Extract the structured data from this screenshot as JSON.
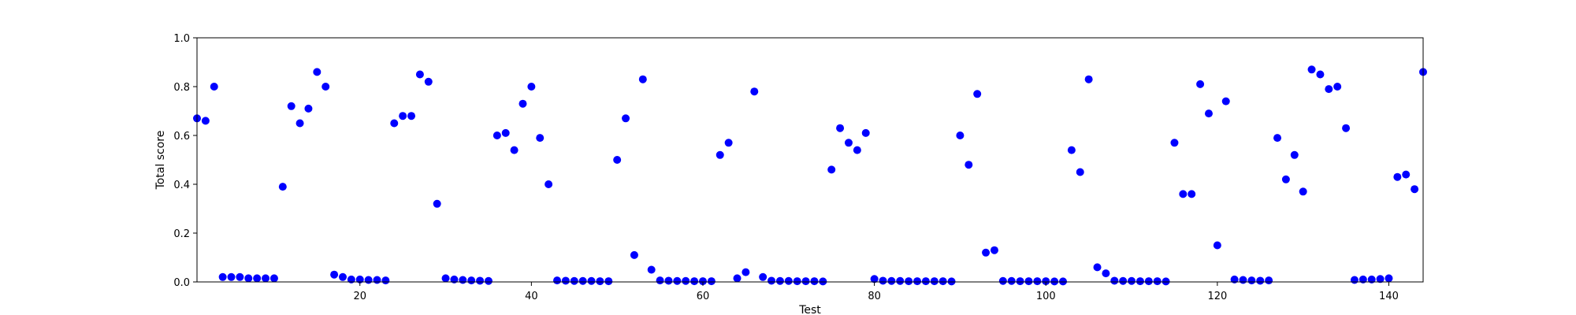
{
  "chart_data": {
    "type": "scatter",
    "title": "",
    "xlabel": "Test",
    "ylabel": "Total score",
    "xlim": [
      1,
      144
    ],
    "ylim": [
      0.0,
      1.0
    ],
    "xticks": [
      20,
      40,
      60,
      80,
      100,
      120,
      140
    ],
    "xtick_labels": [
      "20",
      "40",
      "60",
      "80",
      "100",
      "120",
      "140"
    ],
    "yticks": [
      0.0,
      0.2,
      0.4,
      0.6,
      0.8,
      1.0
    ],
    "ytick_labels": [
      "0.0",
      "0.2",
      "0.4",
      "0.6",
      "0.8",
      "1.0"
    ],
    "grid": false,
    "marker_color": "#0000ff",
    "points": [
      {
        "x": 1,
        "y": 0.67
      },
      {
        "x": 2,
        "y": 0.66
      },
      {
        "x": 3,
        "y": 0.8
      },
      {
        "x": 4,
        "y": 0.02
      },
      {
        "x": 5,
        "y": 0.02
      },
      {
        "x": 6,
        "y": 0.02
      },
      {
        "x": 7,
        "y": 0.015
      },
      {
        "x": 8,
        "y": 0.015
      },
      {
        "x": 9,
        "y": 0.015
      },
      {
        "x": 10,
        "y": 0.015
      },
      {
        "x": 11,
        "y": 0.39
      },
      {
        "x": 12,
        "y": 0.72
      },
      {
        "x": 13,
        "y": 0.65
      },
      {
        "x": 14,
        "y": 0.71
      },
      {
        "x": 15,
        "y": 0.86
      },
      {
        "x": 16,
        "y": 0.8
      },
      {
        "x": 17,
        "y": 0.03
      },
      {
        "x": 18,
        "y": 0.02
      },
      {
        "x": 19,
        "y": 0.01
      },
      {
        "x": 20,
        "y": 0.01
      },
      {
        "x": 21,
        "y": 0.008
      },
      {
        "x": 22,
        "y": 0.008
      },
      {
        "x": 23,
        "y": 0.006
      },
      {
        "x": 24,
        "y": 0.65
      },
      {
        "x": 25,
        "y": 0.68
      },
      {
        "x": 26,
        "y": 0.68
      },
      {
        "x": 27,
        "y": 0.85
      },
      {
        "x": 28,
        "y": 0.82
      },
      {
        "x": 29,
        "y": 0.32
      },
      {
        "x": 30,
        "y": 0.015
      },
      {
        "x": 31,
        "y": 0.01
      },
      {
        "x": 32,
        "y": 0.008
      },
      {
        "x": 33,
        "y": 0.006
      },
      {
        "x": 34,
        "y": 0.005
      },
      {
        "x": 35,
        "y": 0.004
      },
      {
        "x": 36,
        "y": 0.6
      },
      {
        "x": 37,
        "y": 0.61
      },
      {
        "x": 38,
        "y": 0.54
      },
      {
        "x": 39,
        "y": 0.73
      },
      {
        "x": 40,
        "y": 0.8
      },
      {
        "x": 41,
        "y": 0.59
      },
      {
        "x": 42,
        "y": 0.4
      },
      {
        "x": 43,
        "y": 0.006
      },
      {
        "x": 44,
        "y": 0.005
      },
      {
        "x": 45,
        "y": 0.004
      },
      {
        "x": 46,
        "y": 0.004
      },
      {
        "x": 47,
        "y": 0.004
      },
      {
        "x": 48,
        "y": 0.003
      },
      {
        "x": 49,
        "y": 0.003
      },
      {
        "x": 50,
        "y": 0.5
      },
      {
        "x": 51,
        "y": 0.67
      },
      {
        "x": 52,
        "y": 0.11
      },
      {
        "x": 53,
        "y": 0.83
      },
      {
        "x": 54,
        "y": 0.05
      },
      {
        "x": 55,
        "y": 0.006
      },
      {
        "x": 56,
        "y": 0.005
      },
      {
        "x": 57,
        "y": 0.004
      },
      {
        "x": 58,
        "y": 0.004
      },
      {
        "x": 59,
        "y": 0.003
      },
      {
        "x": 60,
        "y": 0.003
      },
      {
        "x": 61,
        "y": 0.003
      },
      {
        "x": 62,
        "y": 0.52
      },
      {
        "x": 63,
        "y": 0.57
      },
      {
        "x": 64,
        "y": 0.015
      },
      {
        "x": 65,
        "y": 0.04
      },
      {
        "x": 66,
        "y": 0.78
      },
      {
        "x": 67,
        "y": 0.02
      },
      {
        "x": 68,
        "y": 0.005
      },
      {
        "x": 69,
        "y": 0.004
      },
      {
        "x": 70,
        "y": 0.004
      },
      {
        "x": 71,
        "y": 0.003
      },
      {
        "x": 72,
        "y": 0.003
      },
      {
        "x": 73,
        "y": 0.003
      },
      {
        "x": 74,
        "y": 0.002
      },
      {
        "x": 75,
        "y": 0.46
      },
      {
        "x": 76,
        "y": 0.63
      },
      {
        "x": 77,
        "y": 0.57
      },
      {
        "x": 78,
        "y": 0.54
      },
      {
        "x": 79,
        "y": 0.61
      },
      {
        "x": 80,
        "y": 0.012
      },
      {
        "x": 81,
        "y": 0.005
      },
      {
        "x": 82,
        "y": 0.004
      },
      {
        "x": 83,
        "y": 0.004
      },
      {
        "x": 84,
        "y": 0.003
      },
      {
        "x": 85,
        "y": 0.003
      },
      {
        "x": 86,
        "y": 0.003
      },
      {
        "x": 87,
        "y": 0.003
      },
      {
        "x": 88,
        "y": 0.003
      },
      {
        "x": 89,
        "y": 0.002
      },
      {
        "x": 90,
        "y": 0.6
      },
      {
        "x": 91,
        "y": 0.48
      },
      {
        "x": 92,
        "y": 0.77
      },
      {
        "x": 93,
        "y": 0.12
      },
      {
        "x": 94,
        "y": 0.13
      },
      {
        "x": 95,
        "y": 0.004
      },
      {
        "x": 96,
        "y": 0.004
      },
      {
        "x": 97,
        "y": 0.003
      },
      {
        "x": 98,
        "y": 0.003
      },
      {
        "x": 99,
        "y": 0.003
      },
      {
        "x": 100,
        "y": 0.003
      },
      {
        "x": 101,
        "y": 0.002
      },
      {
        "x": 102,
        "y": 0.002
      },
      {
        "x": 103,
        "y": 0.54
      },
      {
        "x": 104,
        "y": 0.45
      },
      {
        "x": 105,
        "y": 0.83
      },
      {
        "x": 106,
        "y": 0.06
      },
      {
        "x": 107,
        "y": 0.035
      },
      {
        "x": 108,
        "y": 0.005
      },
      {
        "x": 109,
        "y": 0.004
      },
      {
        "x": 110,
        "y": 0.004
      },
      {
        "x": 111,
        "y": 0.003
      },
      {
        "x": 112,
        "y": 0.003
      },
      {
        "x": 113,
        "y": 0.003
      },
      {
        "x": 114,
        "y": 0.002
      },
      {
        "x": 115,
        "y": 0.57
      },
      {
        "x": 116,
        "y": 0.36
      },
      {
        "x": 117,
        "y": 0.36
      },
      {
        "x": 118,
        "y": 0.81
      },
      {
        "x": 119,
        "y": 0.69
      },
      {
        "x": 120,
        "y": 0.15
      },
      {
        "x": 121,
        "y": 0.74
      },
      {
        "x": 122,
        "y": 0.01
      },
      {
        "x": 123,
        "y": 0.008
      },
      {
        "x": 124,
        "y": 0.006
      },
      {
        "x": 125,
        "y": 0.005
      },
      {
        "x": 126,
        "y": 0.006
      },
      {
        "x": 127,
        "y": 0.59
      },
      {
        "x": 128,
        "y": 0.42
      },
      {
        "x": 129,
        "y": 0.52
      },
      {
        "x": 130,
        "y": 0.37
      },
      {
        "x": 131,
        "y": 0.87
      },
      {
        "x": 132,
        "y": 0.85
      },
      {
        "x": 133,
        "y": 0.79
      },
      {
        "x": 134,
        "y": 0.8
      },
      {
        "x": 135,
        "y": 0.63
      },
      {
        "x": 136,
        "y": 0.008
      },
      {
        "x": 137,
        "y": 0.01
      },
      {
        "x": 138,
        "y": 0.01
      },
      {
        "x": 139,
        "y": 0.012
      },
      {
        "x": 140,
        "y": 0.015
      },
      {
        "x": 141,
        "y": 0.43
      },
      {
        "x": 142,
        "y": 0.44
      },
      {
        "x": 143,
        "y": 0.38
      },
      {
        "x": 144,
        "y": 0.86
      }
    ]
  }
}
